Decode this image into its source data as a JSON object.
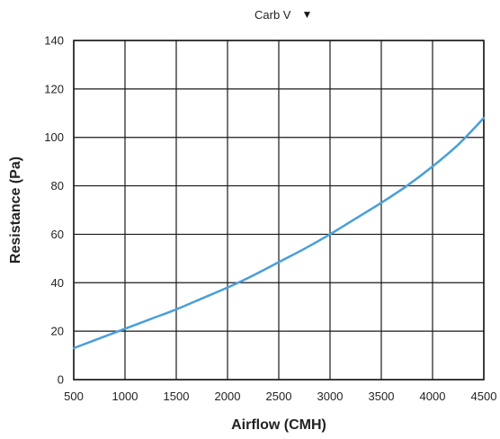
{
  "selector": {
    "value": "Carb V",
    "caret_icon": "triangle-down-icon"
  },
  "chart_data": {
    "type": "line",
    "xlabel": "Airflow (CMH)",
    "ylabel": "Resistance (Pa)",
    "xlim": [
      500,
      4500
    ],
    "ylim": [
      0,
      140
    ],
    "xticks": [
      500,
      1000,
      1500,
      2000,
      2500,
      3000,
      3500,
      4000,
      4500
    ],
    "yticks": [
      0,
      20,
      40,
      60,
      80,
      100,
      120,
      140
    ],
    "grid": true,
    "series": [
      {
        "color": "#4a9fd8",
        "x": [
          500,
          750,
          1000,
          1250,
          1500,
          1750,
          2000,
          2250,
          2500,
          2750,
          3000,
          3250,
          3500,
          3750,
          4000,
          4250,
          4500
        ],
        "y": [
          13,
          17,
          21,
          25,
          29,
          33.5,
          38,
          43,
          48.5,
          54,
          60,
          66.5,
          73,
          80,
          88,
          97,
          108
        ]
      }
    ]
  }
}
